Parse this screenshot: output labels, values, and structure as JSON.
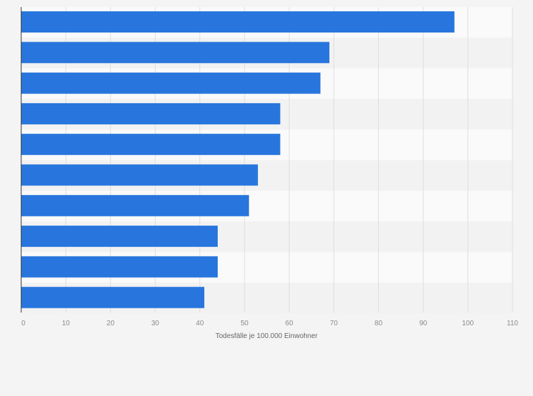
{
  "chart_data": {
    "type": "bar",
    "orientation": "horizontal",
    "categories": [
      "",
      "",
      "",
      "",
      "",
      "",
      "",
      "",
      "",
      ""
    ],
    "values": [
      97,
      69,
      67,
      58,
      58,
      53,
      51,
      44,
      44,
      41
    ],
    "title": "",
    "xlabel": "Todesfälle je 100.000 Einwohner",
    "ylabel": "",
    "xlim": [
      0,
      110
    ],
    "xticks": [
      "0",
      "10",
      "20",
      "30",
      "40",
      "50",
      "60",
      "70",
      "80",
      "90",
      "100",
      "110"
    ],
    "grid": true,
    "bar_color": "#2876dd",
    "band_colors": [
      "#fafafa",
      "#f2f2f2"
    ]
  }
}
